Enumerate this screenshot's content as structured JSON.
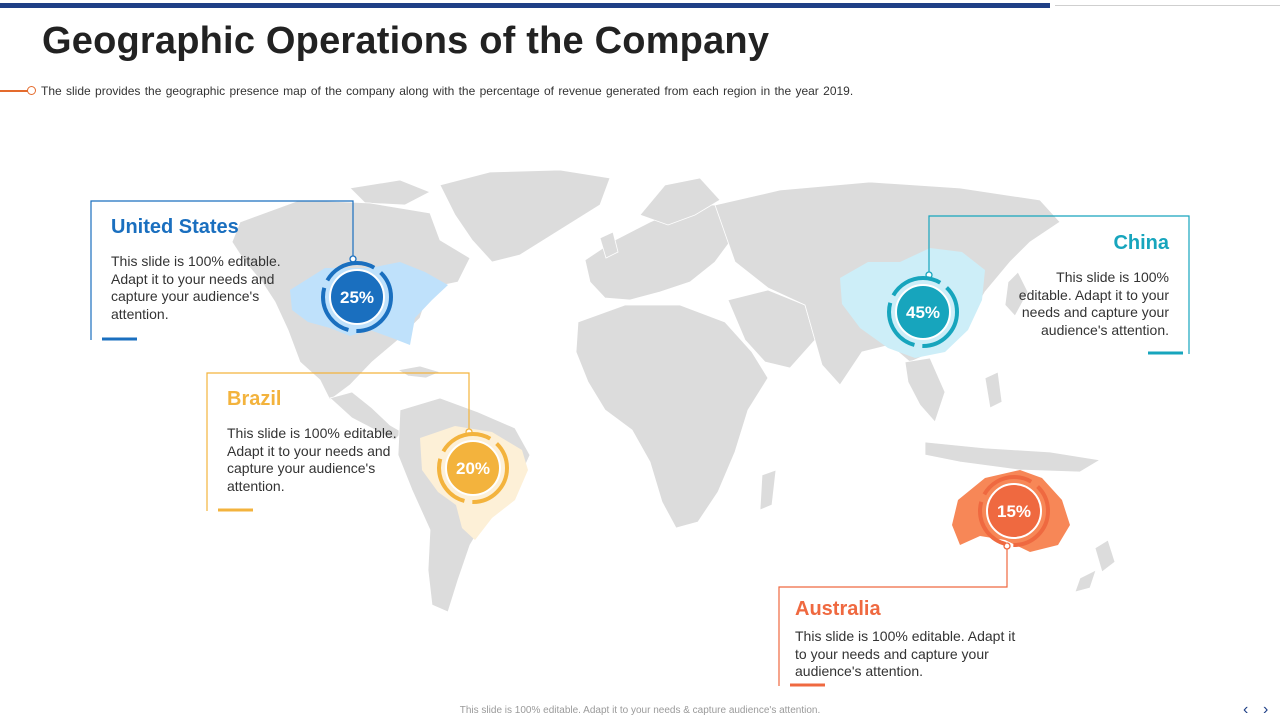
{
  "title": "Geographic Operations of the Company",
  "subtitle": "The slide provides the geographic presence map of the company along with the percentage of revenue generated from each region in the year 2019.",
  "regions": [
    {
      "name": "United States",
      "percent": "25%",
      "color": "#1a6fbf",
      "description": "This slide is 100% editable. Adapt it to your needs and capture your audience's attention."
    },
    {
      "name": "Brazil",
      "percent": "20%",
      "color": "#f3b33d",
      "description": "This slide is 100% editable. Adapt it to your needs and capture your audience's attention."
    },
    {
      "name": "China",
      "percent": "45%",
      "color": "#17a5bd",
      "description": "This slide is 100% editable. Adapt it to your needs and capture your audience's attention."
    },
    {
      "name": "Australia",
      "percent": "15%",
      "color": "#ef6940",
      "description": "This slide is 100% editable. Adapt it to your needs and capture your audience's attention."
    }
  ],
  "footer": "This slide is 100% editable. Adapt it to your needs & capture audience's attention.",
  "nav": {
    "prev_icon": "chevron-left-icon",
    "next_icon": "chevron-right-icon",
    "prev": "‹",
    "next": "›"
  }
}
